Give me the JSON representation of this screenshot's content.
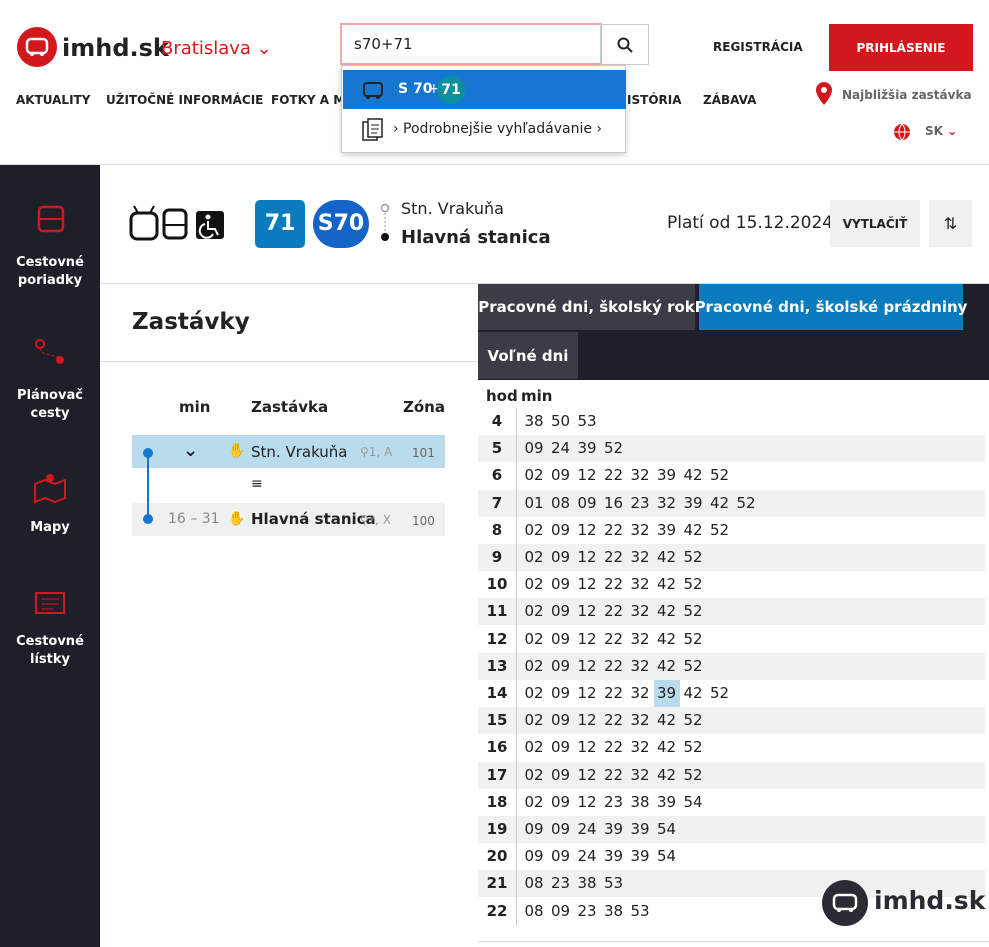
{
  "header": {
    "logo": "imhd.sk",
    "city": "Bratislava",
    "search": "s70+71",
    "register": "REGISTRÁCIA",
    "login": "PRIHLÁSENIE",
    "nav": [
      "AKTUALITY",
      "UŽITOČNÉ INFORMÁCIE",
      "FOTKY A ME",
      "HISTÓRIA",
      "ZÁBAVA"
    ],
    "nearest_stop": "Najbližšia zastávka",
    "language": "SK"
  },
  "dropdown": {
    "line_a": "S 70",
    "plus": "+",
    "line_b": "71",
    "advanced": "› Podrobnejšie vyhľadávanie ›"
  },
  "sidebar": [
    "Cestovné poriadky",
    "Plánovač cesty",
    "Mapy",
    "Cestovné lístky"
  ],
  "route": {
    "lines": [
      "71",
      "S70"
    ],
    "from": "Stn. Vrakuňa",
    "to": "Hlavná stanica",
    "valid": "Platí od 15.12.2024",
    "print": "VYTLAČIŤ"
  },
  "stops": {
    "title": "Zastávky",
    "columns": [
      "min",
      "Zastávka",
      "Zóna"
    ],
    "rows": [
      {
        "min": null,
        "name": "Stn. Vrakuňa",
        "platform": "1, A",
        "zone": "101"
      },
      {
        "min": "16 – 31",
        "name": "Hlavná stanica",
        "platform": "?, X",
        "zone": "100"
      }
    ]
  },
  "tabs": [
    "Pracovné dni, školský rok",
    "Pracovné dni, školské prázdniny",
    "Voľné dni"
  ],
  "timetable": {
    "columns": [
      "hod",
      "min"
    ],
    "rows": [
      [
        "4",
        [
          "38",
          "50",
          "53"
        ]
      ],
      [
        "5",
        [
          "09",
          "24",
          "39",
          "52"
        ]
      ],
      [
        "6",
        [
          "02",
          "09",
          "12",
          "22",
          "32",
          "39",
          "42",
          "52"
        ]
      ],
      [
        "7",
        [
          "01",
          "08",
          "09",
          "16",
          "23",
          "32",
          "39",
          "42",
          "52"
        ]
      ],
      [
        "8",
        [
          "02",
          "09",
          "12",
          "22",
          "32",
          "39",
          "42",
          "52"
        ]
      ],
      [
        "9",
        [
          "02",
          "09",
          "12",
          "22",
          "32",
          "42",
          "52"
        ]
      ],
      [
        "10",
        [
          "02",
          "09",
          "12",
          "22",
          "32",
          "42",
          "52"
        ]
      ],
      [
        "11",
        [
          "02",
          "09",
          "12",
          "22",
          "32",
          "42",
          "52"
        ]
      ],
      [
        "12",
        [
          "02",
          "09",
          "12",
          "22",
          "32",
          "42",
          "52"
        ]
      ],
      [
        "13",
        [
          "02",
          "09",
          "12",
          "22",
          "32",
          "42",
          "52"
        ]
      ],
      [
        "14",
        [
          "02",
          "09",
          "12",
          "22",
          "32",
          "39",
          "42",
          "52"
        ]
      ],
      [
        "15",
        [
          "02",
          "09",
          "12",
          "22",
          "32",
          "42",
          "52"
        ]
      ],
      [
        "16",
        [
          "02",
          "09",
          "12",
          "22",
          "32",
          "42",
          "52"
        ]
      ],
      [
        "17",
        [
          "02",
          "09",
          "12",
          "22",
          "32",
          "42",
          "52"
        ]
      ],
      [
        "18",
        [
          "02",
          "09",
          "12",
          "23",
          "38",
          "39",
          "54"
        ]
      ],
      [
        "19",
        [
          "09",
          "09",
          "24",
          "39",
          "39",
          "54"
        ]
      ],
      [
        "20",
        [
          "09",
          "09",
          "24",
          "39",
          "39",
          "54"
        ]
      ],
      [
        "21",
        [
          "08",
          "23",
          "38",
          "53"
        ]
      ],
      [
        "22",
        [
          "08",
          "09",
          "23",
          "38",
          "53"
        ]
      ]
    ]
  },
  "watermark": "imhd.sk"
}
